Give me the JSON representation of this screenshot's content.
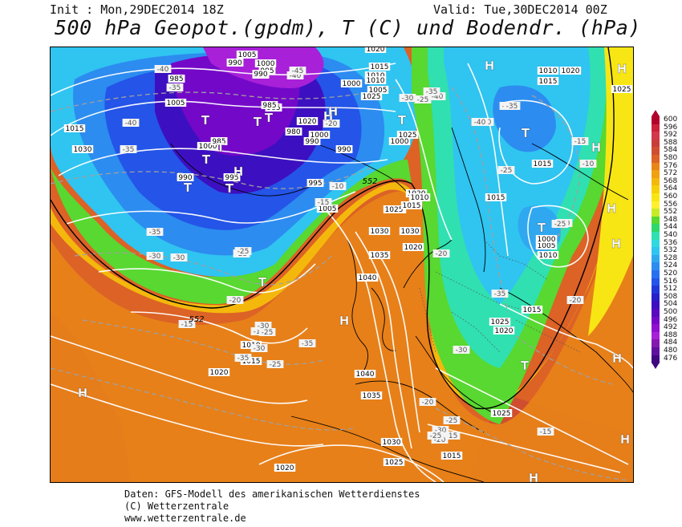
{
  "header": {
    "init": "Init : Mon,29DEC2014 18Z",
    "valid": "Valid: Tue,30DEC2014 00Z",
    "title": "500 hPa Geopot.(gpdm), T (C) und Bodendr. (hPa)"
  },
  "footer": {
    "line1": "Daten: GFS-Modell des amerikanischen Wetterdienstes",
    "line2": "(C) Wetterzentrale",
    "line3": "www.wetterzentrale.de"
  },
  "legend": {
    "labels": [
      "600",
      "596",
      "592",
      "588",
      "584",
      "580",
      "576",
      "572",
      "568",
      "564",
      "560",
      "556",
      "552",
      "548",
      "544",
      "540",
      "536",
      "532",
      "528",
      "524",
      "520",
      "516",
      "512",
      "508",
      "504",
      "500",
      "496",
      "492",
      "488",
      "484",
      "480",
      "476"
    ],
    "colors": [
      "#b1002b",
      "#cc1f3a",
      "#d3374a",
      "#c83c3a",
      "#d04e30",
      "#dc6226",
      "#e88418",
      "#f0a010",
      "#f4b80c",
      "#f6d00a",
      "#f8e614",
      "#fff030",
      "#c8ea28",
      "#58d830",
      "#2ed86a",
      "#30e0b0",
      "#30d8e0",
      "#30c4f0",
      "#30a8f0",
      "#2c8cf0",
      "#2870f0",
      "#2454e8",
      "#2038d8",
      "#2820c8",
      "#3c10c0",
      "#5808c0",
      "#7408c8",
      "#9010d0",
      "#a820d8",
      "#8418b0",
      "#6010a0",
      "#400880"
    ]
  },
  "map": {
    "pressure_labels": [
      "1005",
      "1000",
      "990",
      "995",
      "985",
      "980",
      "1000",
      "1010",
      "1005",
      "1020",
      "1015",
      "1010",
      "1025",
      "1015",
      "1020",
      "1025",
      "1030",
      "1025",
      "1020",
      "990",
      "990",
      "985",
      "1000",
      "1005",
      "985",
      "990",
      "995",
      "1000",
      "985",
      "990",
      "990",
      "995",
      "1005",
      "1010",
      "1020",
      "1015",
      "1025",
      "1015",
      "1030",
      "1035",
      "1040",
      "1010",
      "1020",
      "1005",
      "1000",
      "1010",
      "1015",
      "1020",
      "1025",
      "1040",
      "1035",
      "1030",
      "1025",
      "1020",
      "1015",
      "1025",
      "1015",
      "1010",
      "1020",
      "1025",
      "1015",
      "1000",
      "1015",
      "1030"
    ],
    "temp_labels": [
      "-40",
      "-35",
      "-40",
      "-35",
      "-30",
      "-25",
      "-35",
      "-30",
      "-25",
      "-20",
      "-15",
      "-10",
      "-25",
      "-30",
      "-35",
      "-40",
      "-45",
      "-40",
      "-35",
      "-30",
      "-25",
      "-20",
      "-15",
      "-10",
      "-40",
      "-30",
      "-25",
      "-20",
      "-15",
      "-10",
      "-35",
      "-25",
      "-20",
      "-20",
      "-15",
      "-30",
      "-25",
      "-40",
      "-35",
      "-20",
      "-30",
      "-25",
      "-20",
      "-15",
      "-35",
      "-30",
      "-25"
    ],
    "height_labels": [
      "552",
      "552"
    ],
    "centers": [
      "H",
      "T",
      "T",
      "T",
      "T",
      "H",
      "T",
      "T",
      "T",
      "T",
      "H",
      "T",
      "H",
      "H",
      "T",
      "H",
      "H",
      "H",
      "T",
      "H",
      "T",
      "H",
      "H",
      "H",
      "H"
    ]
  }
}
